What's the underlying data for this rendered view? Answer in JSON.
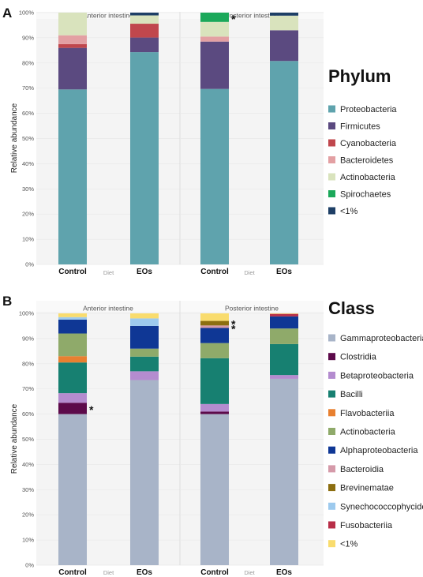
{
  "chart_data": [
    {
      "panel": "A",
      "type": "bar",
      "stacked": true,
      "ylabel": "Relative abundance",
      "xlabel": "Diet",
      "ylim": [
        0,
        100
      ],
      "yticks": [
        "0%",
        "10%",
        "20%",
        "30%",
        "40%",
        "50%",
        "60%",
        "70%",
        "80%",
        "90%",
        "100%"
      ],
      "facets": [
        "Anterior intestine",
        "Posterior intestine"
      ],
      "categories": [
        "Control",
        "EOs"
      ],
      "legend_title": "Phylum",
      "legend_position": "right",
      "series": [
        {
          "name": "Proteobacteria",
          "color": "#5fa3ad",
          "values": [
            [
              69.5,
              84.3
            ],
            [
              69.7,
              80.8
            ]
          ]
        },
        {
          "name": "Firmicutes",
          "color": "#5b4a80",
          "values": [
            [
              16.5,
              5.8
            ],
            [
              18.8,
              12.2
            ]
          ]
        },
        {
          "name": "Cyanobacteria",
          "color": "#c0474d",
          "values": [
            [
              1.5,
              5.5
            ],
            [
              0,
              0
            ]
          ]
        },
        {
          "name": "Bacteroidetes",
          "color": "#e3a0a3",
          "values": [
            [
              3.5,
              0
            ],
            [
              2.0,
              0
            ]
          ]
        },
        {
          "name": "Actinobacteria",
          "color": "#d9e3bd",
          "values": [
            [
              9.0,
              3.3
            ],
            [
              5.8,
              5.8
            ]
          ]
        },
        {
          "name": "Spirochaetes",
          "color": "#1ba85a",
          "values": [
            [
              0,
              0
            ],
            [
              3.7,
              0
            ]
          ]
        },
        {
          "name": "<1%",
          "color": "#1e3f66",
          "values": [
            [
              0,
              1.1
            ],
            [
              0,
              1.2
            ]
          ]
        }
      ],
      "annotations": [
        {
          "facet": 1,
          "category": 0,
          "at": 98,
          "text": "*"
        }
      ]
    },
    {
      "panel": "B",
      "type": "bar",
      "stacked": true,
      "ylabel": "Relative abundance",
      "xlabel": "Diet",
      "ylim": [
        0,
        100
      ],
      "yticks": [
        "0%",
        "10%",
        "20%",
        "30%",
        "40%",
        "50%",
        "60%",
        "70%",
        "80%",
        "90%",
        "100%"
      ],
      "facets": [
        "Anterior intestine",
        "Posterior intestine"
      ],
      "categories": [
        "Control",
        "EOs"
      ],
      "legend_title": "Class",
      "legend_position": "right",
      "series": [
        {
          "name": "Gammaproteobacteria",
          "color": "#a8b4c8",
          "values": [
            [
              60.0,
              73.5
            ],
            [
              60.0,
              74.0
            ]
          ]
        },
        {
          "name": "Clostridia",
          "color": "#5c0a4a",
          "values": [
            [
              4.5,
              0
            ],
            [
              1.0,
              0
            ]
          ]
        },
        {
          "name": "Betaproteobacteria",
          "color": "#b48ccf",
          "values": [
            [
              3.8,
              3.5
            ],
            [
              3.0,
              1.5
            ]
          ]
        },
        {
          "name": "Bacilli",
          "color": "#178071",
          "values": [
            [
              12.2,
              5.8
            ],
            [
              18.2,
              12.3
            ]
          ]
        },
        {
          "name": "Flavobacteriia",
          "color": "#e88030",
          "values": [
            [
              2.5,
              0
            ],
            [
              0,
              0
            ]
          ]
        },
        {
          "name": "Actinobacteria",
          "color": "#8faa6a",
          "values": [
            [
              9.0,
              3.2
            ],
            [
              6.0,
              6.2
            ]
          ]
        },
        {
          "name": "Alphaproteobacteria",
          "color": "#0f3795",
          "values": [
            [
              5.5,
              9.0
            ],
            [
              6.0,
              4.8
            ]
          ]
        },
        {
          "name": "Bacteroidia",
          "color": "#d59aa9",
          "values": [
            [
              0,
              0
            ],
            [
              1.0,
              0
            ]
          ]
        },
        {
          "name": "Brevinematae",
          "color": "#8c6e10",
          "values": [
            [
              0,
              0
            ],
            [
              1.8,
              0
            ]
          ]
        },
        {
          "name": "Synechococcophycideae",
          "color": "#9dcaee",
          "values": [
            [
              1.0,
              3.0
            ],
            [
              0,
              0
            ]
          ]
        },
        {
          "name": "Fusobacteriia",
          "color": "#b82e48",
          "values": [
            [
              0,
              0
            ],
            [
              0,
              1.0
            ]
          ]
        },
        {
          "name": "<1%",
          "color": "#f9dc6e",
          "values": [
            [
              1.5,
              2.0
            ],
            [
              3.0,
              0.2
            ]
          ]
        }
      ],
      "annotations": [
        {
          "facet": 0,
          "category": 0,
          "at": 62.2,
          "text": "*"
        },
        {
          "facet": 1,
          "category": 0,
          "at": 96.2,
          "text": "*"
        },
        {
          "facet": 1,
          "category": 0,
          "at": 94.4,
          "text": "*"
        }
      ]
    }
  ]
}
